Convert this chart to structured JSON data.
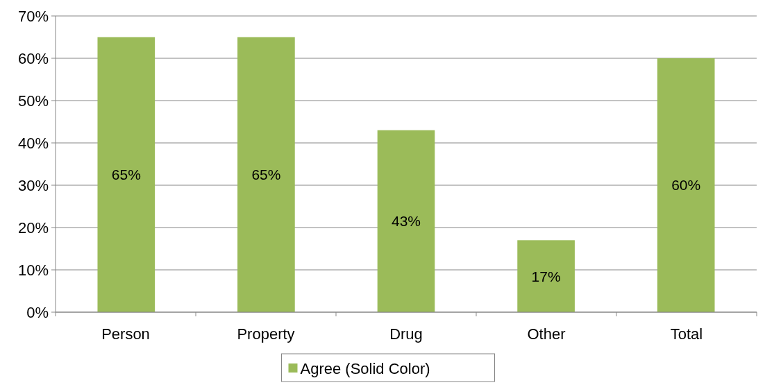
{
  "chart_data": {
    "type": "bar",
    "categories": [
      "Person",
      "Property",
      "Drug",
      "Other",
      "Total"
    ],
    "series": [
      {
        "name": "Agree (Solid Color)",
        "color": "#9bbb59",
        "values": [
          65,
          65,
          43,
          17,
          60
        ],
        "value_labels": [
          "65%",
          "65%",
          "43%",
          "17%",
          "60%"
        ]
      }
    ],
    "ylim": [
      0,
      70
    ],
    "yticks": [
      {
        "value": 0,
        "label": "0%"
      },
      {
        "value": 10,
        "label": "10%"
      },
      {
        "value": 20,
        "label": "20%"
      },
      {
        "value": 30,
        "label": "30%"
      },
      {
        "value": 40,
        "label": "40%"
      },
      {
        "value": 50,
        "label": "50%"
      },
      {
        "value": 60,
        "label": "60%"
      },
      {
        "value": 70,
        "label": "70%"
      }
    ],
    "grid": "y",
    "legend": "bottom"
  }
}
